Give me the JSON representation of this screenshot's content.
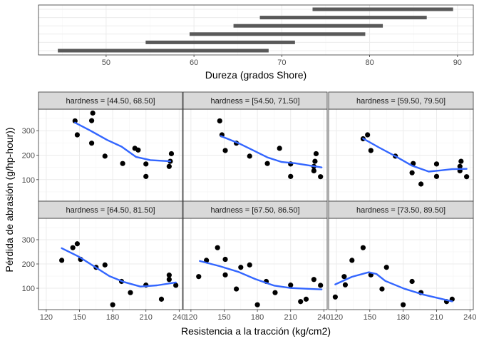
{
  "chart_data": [
    {
      "type": "interval",
      "title": "",
      "xlabel": "Dureza (grados Shore)",
      "ylabel": "",
      "xlim": [
        42.3,
        91.8
      ],
      "xticks": [
        50,
        60,
        70,
        80,
        90
      ],
      "grid": true,
      "intervals": [
        {
          "low": 44.5,
          "high": 68.5
        },
        {
          "low": 54.5,
          "high": 71.5
        },
        {
          "low": 59.5,
          "high": 79.5
        },
        {
          "low": 64.5,
          "high": 81.5
        },
        {
          "low": 67.5,
          "high": 86.5
        },
        {
          "low": 73.5,
          "high": 89.5
        }
      ]
    },
    {
      "type": "scatter",
      "title": "",
      "xlabel": "Resistencia a la tracción (kg/cm2)",
      "ylabel": "Pérdida de abrasión (g/hp-hour))",
      "xlim": [
        113,
        243
      ],
      "ylim": [
        12,
        388
      ],
      "xticks": [
        120,
        150,
        180,
        210,
        240
      ],
      "yticks": [
        100,
        200,
        300
      ],
      "grid": true,
      "smooth_color": "#3366FF",
      "point_color": "#000000",
      "panels": [
        {
          "label": "hardness = [44.50, 68.50]",
          "points": [
            [
              162,
              372
            ],
            [
              233,
              206
            ],
            [
              232,
              175
            ],
            [
              231,
              154
            ],
            [
              203,
              221
            ],
            [
              189,
              166
            ],
            [
              210,
              164
            ],
            [
              210,
              113
            ],
            [
              200,
              228
            ],
            [
              173,
              196
            ],
            [
              161,
              249
            ],
            [
              161,
              341
            ],
            [
              146,
              340
            ],
            [
              148,
              283
            ]
          ],
          "smooth": [
            [
              146,
              333
            ],
            [
              160,
              300
            ],
            [
              175,
              262
            ],
            [
              188,
              235
            ],
            [
              201,
              193
            ],
            [
              214,
              180
            ],
            [
              232,
              175
            ]
          ]
        },
        {
          "label": "hardness = [54.50, 71.50]",
          "points": [
            [
              233,
              206
            ],
            [
              232,
              175
            ],
            [
              231,
              154
            ],
            [
              231,
              136
            ],
            [
              237,
              112
            ],
            [
              189,
              166
            ],
            [
              210,
              164
            ],
            [
              210,
              113
            ],
            [
              200,
              228
            ],
            [
              173,
              196
            ],
            [
              161,
              249
            ],
            [
              151,
              219
            ],
            [
              146,
              340
            ],
            [
              148,
              283
            ]
          ],
          "smooth": [
            [
              147,
              278
            ],
            [
              163,
              249
            ],
            [
              176,
              220
            ],
            [
              189,
              191
            ],
            [
              202,
              172
            ],
            [
              214,
              167
            ],
            [
              238,
              150
            ]
          ]
        },
        {
          "label": "hardness = [59.50, 79.50]",
          "points": [
            [
              232,
              175
            ],
            [
              231,
              154
            ],
            [
              231,
              136
            ],
            [
              237,
              112
            ],
            [
              189,
              166
            ],
            [
              210,
              164
            ],
            [
              210,
              113
            ],
            [
              196,
              82
            ],
            [
              173,
              196
            ],
            [
              188,
              128
            ],
            [
              151,
              219
            ],
            [
              148,
              283
            ],
            [
              144,
              267
            ]
          ],
          "smooth": [
            [
              144,
              268
            ],
            [
              158,
              232
            ],
            [
              173,
              196
            ],
            [
              188,
              157
            ],
            [
              203,
              133
            ],
            [
              214,
              138
            ],
            [
              224,
              143
            ],
            [
              237,
              144
            ]
          ]
        },
        {
          "label": "hardness = [64.50, 81.50]",
          "points": [
            [
              231,
              154
            ],
            [
              231,
              136
            ],
            [
              237,
              112
            ],
            [
              224,
              55
            ],
            [
              210,
              113
            ],
            [
              196,
              82
            ],
            [
              180,
              32
            ],
            [
              173,
              196
            ],
            [
              188,
              128
            ],
            [
              151,
              219
            ],
            [
              165,
              186
            ],
            [
              148,
              283
            ],
            [
              144,
              267
            ],
            [
              134,
              215
            ]
          ],
          "smooth": [
            [
              134,
              265
            ],
            [
              149,
              231
            ],
            [
              164,
              188
            ],
            [
              177,
              150
            ],
            [
              190,
              126
            ],
            [
              205,
              107
            ],
            [
              220,
              112
            ],
            [
              237,
              124
            ]
          ]
        },
        {
          "label": "hardness = [67.50, 86.50]",
          "points": [
            [
              231,
              136
            ],
            [
              237,
              112
            ],
            [
              224,
              55
            ],
            [
              219,
              45
            ],
            [
              210,
              113
            ],
            [
              196,
              82
            ],
            [
              180,
              32
            ],
            [
              173,
              196
            ],
            [
              188,
              128
            ],
            [
              161,
              97
            ],
            [
              151,
              219
            ],
            [
              165,
              186
            ],
            [
              151,
              155
            ],
            [
              144,
              267
            ],
            [
              134,
              215
            ],
            [
              127,
              148
            ]
          ],
          "smooth": [
            [
              128,
              212
            ],
            [
              146,
              191
            ],
            [
              163,
              167
            ],
            [
              178,
              138
            ],
            [
              195,
              111
            ],
            [
              210,
              101
            ],
            [
              238,
              95
            ]
          ]
        },
        {
          "label": "hardness = [73.50, 89.50]",
          "points": [
            [
              224,
              55
            ],
            [
              219,
              45
            ],
            [
              196,
              82
            ],
            [
              180,
              32
            ],
            [
              188,
              128
            ],
            [
              161,
              97
            ],
            [
              119,
              64
            ],
            [
              165,
              186
            ],
            [
              151,
              155
            ],
            [
              128,
              114
            ],
            [
              144,
              267
            ],
            [
              134,
              215
            ],
            [
              127,
              148
            ]
          ],
          "smooth": [
            [
              119,
              116
            ],
            [
              134,
              147
            ],
            [
              149,
              166
            ],
            [
              156,
              159
            ],
            [
              164,
              130
            ],
            [
              181,
              98
            ],
            [
              198,
              74
            ],
            [
              224,
              46
            ]
          ]
        }
      ]
    }
  ]
}
